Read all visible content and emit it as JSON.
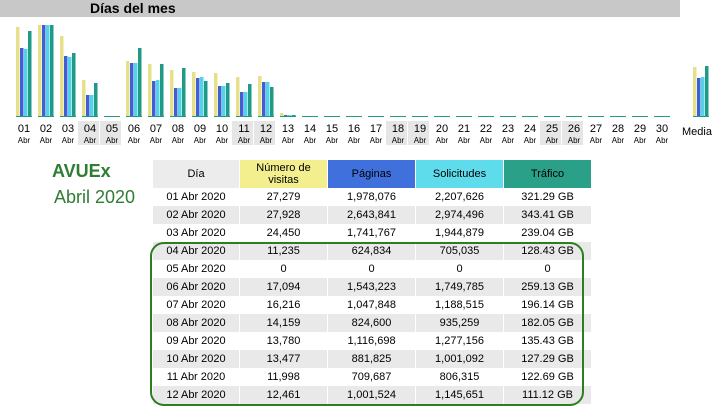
{
  "header": {
    "title": "Días del mes"
  },
  "month_abbr": "Abr",
  "days": [
    "01",
    "02",
    "03",
    "04",
    "05",
    "06",
    "07",
    "08",
    "09",
    "10",
    "11",
    "12",
    "13",
    "14",
    "15",
    "16",
    "17",
    "18",
    "19",
    "20",
    "21",
    "22",
    "23",
    "24",
    "25",
    "26",
    "27",
    "28",
    "29",
    "30"
  ],
  "weekend_days": [
    "04",
    "05",
    "11",
    "12",
    "18",
    "19",
    "25",
    "26"
  ],
  "media_label": "Media",
  "site": {
    "name": "AVUEx",
    "period": "Abril 2020"
  },
  "colors": {
    "visits": "#e6e08a",
    "pages": "#3f5fd6",
    "hits": "#55d3e6",
    "traffic": "#1f9a86"
  },
  "table": {
    "headers": [
      {
        "label": "Día",
        "color": "#ececec"
      },
      {
        "label": "Número de visitas",
        "color": "#f3ef8f"
      },
      {
        "label": "Páginas",
        "color": "#3f70dc"
      },
      {
        "label": "Solicitudes",
        "color": "#5fdcec"
      },
      {
        "label": "Tráfico",
        "color": "#2aa088"
      }
    ],
    "rows": [
      [
        "01 Abr 2020",
        "27,279",
        "1,978,076",
        "2,207,626",
        "321.29 GB"
      ],
      [
        "02 Abr 2020",
        "27,928",
        "2,643,841",
        "2,974,496",
        "343.41 GB"
      ],
      [
        "03 Abr 2020",
        "24,450",
        "1,741,767",
        "1,944,879",
        "239.04 GB"
      ],
      [
        "04 Abr 2020",
        "11,235",
        "624,834",
        "705,035",
        "128.43 GB"
      ],
      [
        "05 Abr 2020",
        "0",
        "0",
        "0",
        "0"
      ],
      [
        "06 Abr 2020",
        "17,094",
        "1,543,223",
        "1,749,785",
        "259.13 GB"
      ],
      [
        "07 Abr 2020",
        "16,216",
        "1,047,848",
        "1,188,515",
        "196.14 GB"
      ],
      [
        "08 Abr 2020",
        "14,159",
        "824,600",
        "935,259",
        "182.05 GB"
      ],
      [
        "09 Abr 2020",
        "13,780",
        "1,116,698",
        "1,277,156",
        "135.43 GB"
      ],
      [
        "10 Abr 2020",
        "13,477",
        "881,825",
        "1,001,092",
        "127.29 GB"
      ],
      [
        "11 Abr 2020",
        "11,998",
        "709,687",
        "806,315",
        "122.69 GB"
      ],
      [
        "12 Abr 2020",
        "12,461",
        "1,001,524",
        "1,145,651",
        "111.12 GB"
      ]
    ]
  },
  "chart_data": {
    "type": "bar",
    "categories": [
      "01",
      "02",
      "03",
      "04",
      "05",
      "06",
      "07",
      "08",
      "09",
      "10",
      "11",
      "12",
      "13",
      "14",
      "15",
      "16",
      "17",
      "18",
      "19",
      "20",
      "21",
      "22",
      "23",
      "24",
      "25",
      "26",
      "27",
      "28",
      "29",
      "30",
      "Media"
    ],
    "series": [
      {
        "name": "Número de visitas",
        "values": [
          27279,
          27928,
          24450,
          11235,
          0,
          17094,
          16216,
          14159,
          13780,
          13477,
          11998,
          12461,
          1100,
          0,
          0,
          0,
          0,
          0,
          0,
          0,
          0,
          0,
          0,
          0,
          0,
          0,
          0,
          0,
          0,
          0,
          15200
        ]
      },
      {
        "name": "Páginas",
        "values": [
          1978076,
          2643841,
          1741767,
          624834,
          0,
          1543223,
          1047848,
          824600,
          1116698,
          881825,
          709687,
          1001524,
          60000,
          0,
          0,
          0,
          0,
          0,
          0,
          0,
          0,
          0,
          0,
          0,
          0,
          0,
          0,
          0,
          0,
          0,
          1130000
        ]
      },
      {
        "name": "Solicitudes",
        "values": [
          2207626,
          2974496,
          1944879,
          705035,
          0,
          1749785,
          1188515,
          935259,
          1277156,
          1001092,
          806315,
          1145651,
          70000,
          0,
          0,
          0,
          0,
          0,
          0,
          0,
          0,
          0,
          0,
          0,
          0,
          0,
          0,
          0,
          0,
          0,
          1280000
        ]
      },
      {
        "name": "Tráfico",
        "values": [
          321.29,
          343.41,
          239.04,
          128.43,
          0,
          259.13,
          196.14,
          182.05,
          135.43,
          127.29,
          122.69,
          111.12,
          8,
          0,
          0,
          0,
          0,
          0,
          0,
          0,
          0,
          0,
          0,
          0,
          0,
          0,
          0,
          0,
          0,
          0,
          189
        ]
      }
    ]
  }
}
